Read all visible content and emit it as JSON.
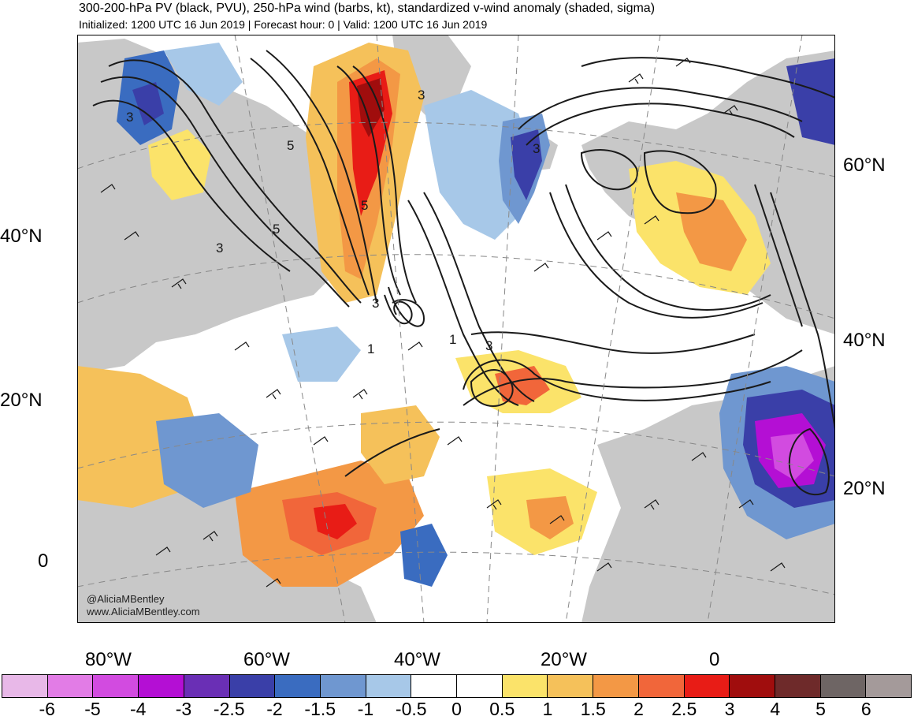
{
  "header": {
    "title": "300-200-hPa PV (black, PVU), 250-hPa wind (barbs, kt), standardized v-wind anomaly (shaded, sigma)",
    "subtitle": "Initialized: 1200 UTC 16 Jun 2019 | Forecast hour: 0 | Valid: 1200 UTC 16 Jun 2019"
  },
  "map": {
    "lat_labels_left": [
      "40°N",
      "20°N",
      "0"
    ],
    "lat_labels_right": [
      "60°N",
      "40°N",
      "20°N"
    ],
    "lon_labels": [
      "80°W",
      "60°W",
      "40°W",
      "20°W",
      "0"
    ],
    "contour_labels": [
      "3",
      "3",
      "5",
      "5",
      "5",
      "3",
      "3",
      "3",
      "1",
      "1",
      "3"
    ],
    "credit_handle": "@AliciaMBentley",
    "credit_site": "www.AliciaMBentley.com",
    "colors": {
      "land": "#c8c8c8",
      "ocean": "#ffffff",
      "contour": "#1a1a1a"
    }
  },
  "colorbar": {
    "colors": [
      "#e8b8e8",
      "#e27ce6",
      "#d24be0",
      "#b40fd4",
      "#6a2fb5",
      "#3a3fa8",
      "#3a6cc0",
      "#6f97d0",
      "#a7c8e8",
      "#ffffff",
      "#ffffff",
      "#fbe36a",
      "#f5c15a",
      "#f39845",
      "#f1663a",
      "#e81c16",
      "#a00d0d",
      "#6e2a2a",
      "#6e6564",
      "#a49a9a"
    ],
    "labels": [
      "-6",
      "-5",
      "-4",
      "-3",
      "-2.5",
      "-2",
      "-1.5",
      "-1",
      "-0.5",
      "0",
      "0.5",
      "1",
      "1.5",
      "2",
      "2.5",
      "3",
      "4",
      "5",
      "6"
    ]
  }
}
